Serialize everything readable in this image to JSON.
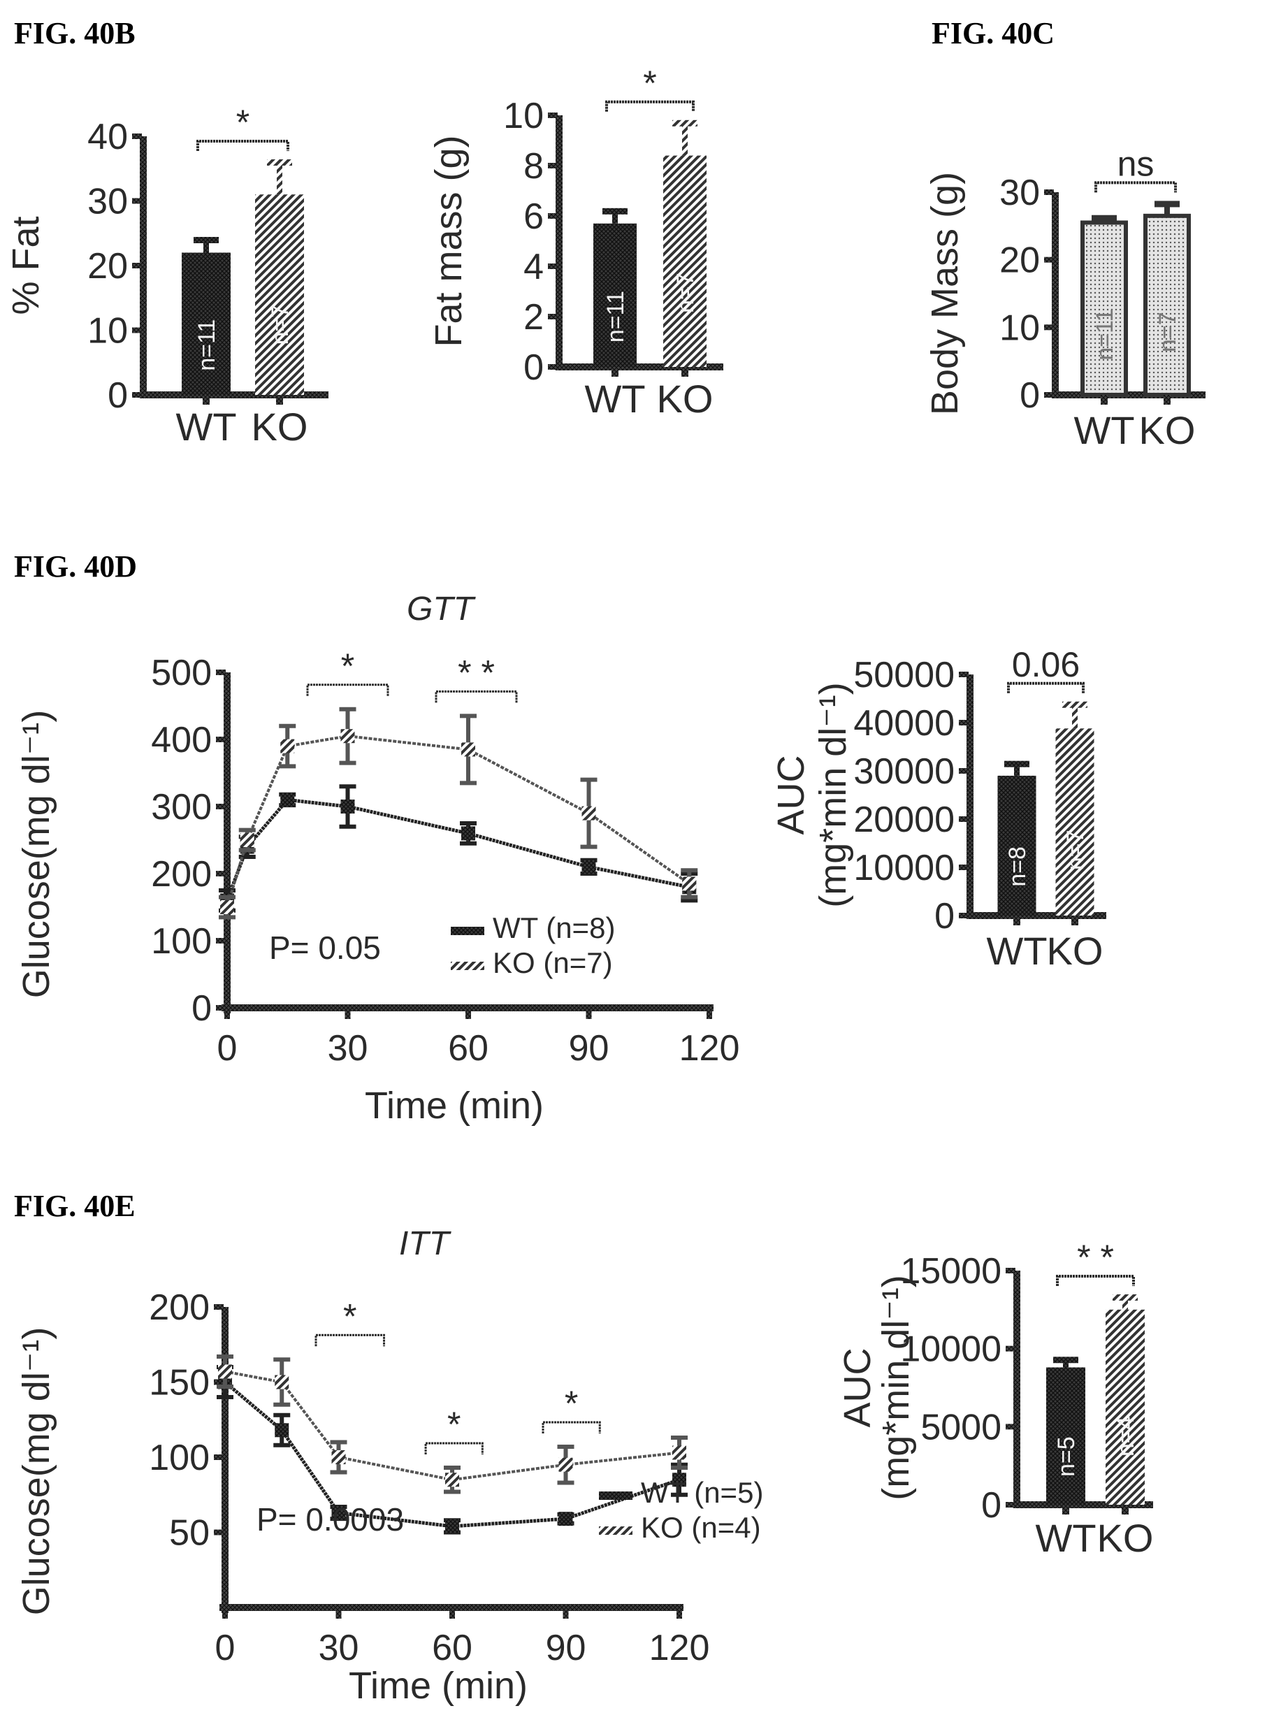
{
  "figure_labels": {
    "b": "FIG. 40B",
    "c": "FIG. 40C",
    "d": "FIG. 40D",
    "e": "FIG. 40E"
  },
  "colors": {
    "ink": "#2a2a2a",
    "wt_fill": "#333333",
    "ko_fill": "#777777",
    "bodymass_fill": "#bbbbbb",
    "background": "#ffffff"
  },
  "chart_data": [
    {
      "id": "fat_percent",
      "type": "bar",
      "figure": "FIG. 40B",
      "title": "",
      "xlabel": "",
      "ylabel": "% Fat",
      "categories": [
        "WT",
        "KO"
      ],
      "values": [
        22,
        31
      ],
      "errors": [
        2,
        5
      ],
      "n_labels": [
        "n=11",
        "n=7"
      ],
      "ylim": [
        0,
        40
      ],
      "yticks": [
        0,
        10,
        20,
        30,
        40
      ],
      "significance": "*",
      "grid": false
    },
    {
      "id": "fat_mass",
      "type": "bar",
      "figure": "FIG. 40B",
      "title": "",
      "xlabel": "",
      "ylabel": "Fat mass (g)",
      "categories": [
        "WT",
        "KO"
      ],
      "values": [
        5.7,
        8.4
      ],
      "errors": [
        0.5,
        1.3
      ],
      "n_labels": [
        "n=11",
        "n=7"
      ],
      "ylim": [
        0,
        10
      ],
      "yticks": [
        0,
        2,
        4,
        6,
        8,
        10
      ],
      "significance": "*",
      "grid": false
    },
    {
      "id": "body_mass",
      "type": "bar",
      "figure": "FIG. 40C",
      "title": "",
      "xlabel": "",
      "ylabel": "Body Mass (g)",
      "categories": [
        "WT",
        "KO"
      ],
      "values": [
        25.5,
        26.5
      ],
      "errors": [
        0.7,
        1.8
      ],
      "n_labels": [
        "n=11",
        "n=7"
      ],
      "ylim": [
        0,
        30
      ],
      "yticks": [
        0,
        10,
        20,
        30
      ],
      "significance": "ns",
      "grid": false
    },
    {
      "id": "gtt",
      "type": "line",
      "figure": "FIG. 40D",
      "title": "GTT",
      "xlabel": "Time (min)",
      "ylabel": "Glucose(mg dl⁻¹)",
      "x": [
        0,
        5,
        15,
        30,
        60,
        90,
        115
      ],
      "series": [
        {
          "name": "WT (n=8)",
          "values": [
            160,
            240,
            310,
            300,
            260,
            210,
            180
          ],
          "errors": [
            15,
            15,
            8,
            30,
            15,
            10,
            20
          ]
        },
        {
          "name": "KO (n=7)",
          "values": [
            150,
            250,
            390,
            405,
            385,
            290,
            185
          ],
          "errors": [
            15,
            15,
            30,
            40,
            50,
            50,
            20
          ]
        }
      ],
      "xlim": [
        0,
        120
      ],
      "ylim": [
        0,
        500
      ],
      "xticks": [
        0,
        30,
        60,
        90,
        120
      ],
      "yticks": [
        0,
        100,
        200,
        300,
        400,
        500
      ],
      "annotations": [
        {
          "text": "*",
          "x_range": [
            20,
            40
          ]
        },
        {
          "text": "* *",
          "x_range": [
            52,
            72
          ]
        }
      ],
      "p_value": "P= 0.05",
      "legend": "bottom-right",
      "grid": false
    },
    {
      "id": "gtt_auc",
      "type": "bar",
      "figure": "FIG. 40D",
      "title": "",
      "xlabel": "",
      "ylabel": "AUC",
      "ylabel2": "(mg*min dl⁻¹)",
      "categories": [
        "WT",
        "KO"
      ],
      "values": [
        29000,
        38800
      ],
      "errors": [
        2500,
        5000
      ],
      "n_labels": [
        "n=8",
        "n=7"
      ],
      "ylim": [
        0,
        50000
      ],
      "yticks": [
        0,
        10000,
        20000,
        30000,
        40000,
        50000
      ],
      "significance": "0.06",
      "grid": false
    },
    {
      "id": "itt",
      "type": "line",
      "figure": "FIG. 40E",
      "title": "ITT",
      "xlabel": "Time (min)",
      "ylabel": "Glucose(mg dl⁻¹)",
      "x": [
        0,
        15,
        30,
        60,
        90,
        120
      ],
      "series": [
        {
          "name": "WT (n=5)",
          "values": [
            150,
            118,
            63,
            54,
            59,
            85
          ],
          "errors": [
            10,
            10,
            4,
            4,
            3,
            10
          ]
        },
        {
          "name": "KO (n=4)",
          "values": [
            157,
            150,
            100,
            85,
            95,
            103
          ],
          "errors": [
            10,
            15,
            10,
            8,
            12,
            10
          ]
        }
      ],
      "xlim": [
        0,
        120
      ],
      "ylim": [
        0,
        200
      ],
      "xticks": [
        0,
        30,
        60,
        90,
        120
      ],
      "yticks": [
        50,
        100,
        150,
        200
      ],
      "annotations": [
        {
          "text": "*",
          "x_range": [
            24,
            42
          ]
        },
        {
          "text": "*",
          "x_range": [
            53,
            68
          ]
        },
        {
          "text": "*",
          "x_range": [
            84,
            99
          ]
        }
      ],
      "p_value": "P= 0.0003",
      "legend": "bottom-right",
      "grid": false
    },
    {
      "id": "itt_auc",
      "type": "bar",
      "figure": "FIG. 40E",
      "title": "",
      "xlabel": "",
      "ylabel": "AUC",
      "ylabel2": "(mg*min dl⁻¹)",
      "categories": [
        "WT",
        "KO"
      ],
      "values": [
        8800,
        12500
      ],
      "errors": [
        500,
        800
      ],
      "n_labels": [
        "n=5",
        "n=4"
      ],
      "ylim": [
        0,
        15000
      ],
      "yticks": [
        0,
        5000,
        10000,
        15000
      ],
      "significance": "* *",
      "grid": false
    }
  ]
}
